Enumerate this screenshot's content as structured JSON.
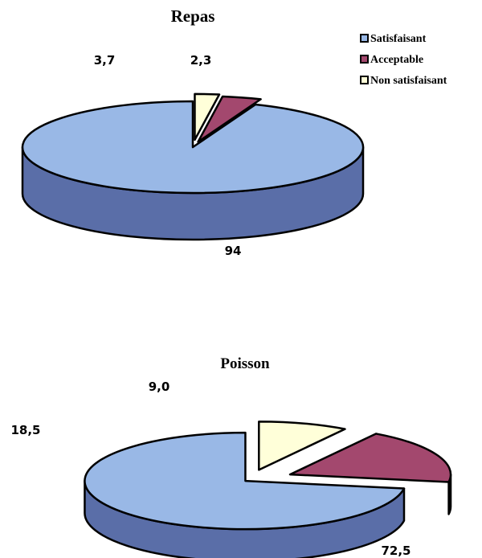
{
  "chart_data": [
    {
      "type": "pie",
      "title": "Repas",
      "style": "3d-exploded",
      "categories": [
        "Satisfaisant",
        "Acceptable",
        "Non satisfaisant"
      ],
      "values": [
        94,
        3.7,
        2.3
      ],
      "value_labels": [
        "94",
        "3,7",
        "2,3"
      ],
      "legend": {
        "position": "top-right",
        "entries": [
          "Satisfaisant",
          "Acceptable",
          "Non satisfaisant"
        ]
      }
    },
    {
      "type": "pie",
      "title": "Poisson",
      "style": "3d-exploded",
      "categories": [
        "Satisfaisant",
        "Acceptable",
        "Non satisfaisant"
      ],
      "values": [
        72.5,
        18.5,
        9.0
      ],
      "value_labels": [
        "72,5",
        "18,5",
        "9,0"
      ]
    }
  ],
  "colors": {
    "satisfaisant_top": "#99b8e6",
    "satisfaisant_side": "#5a6ea8",
    "acceptable_top": "#a3486e",
    "acceptable_side": "#5c2040",
    "non_satisfaisant_top": "#ffffd9",
    "non_satisfaisant_side": "#a8a89a",
    "outline": "#000000"
  }
}
